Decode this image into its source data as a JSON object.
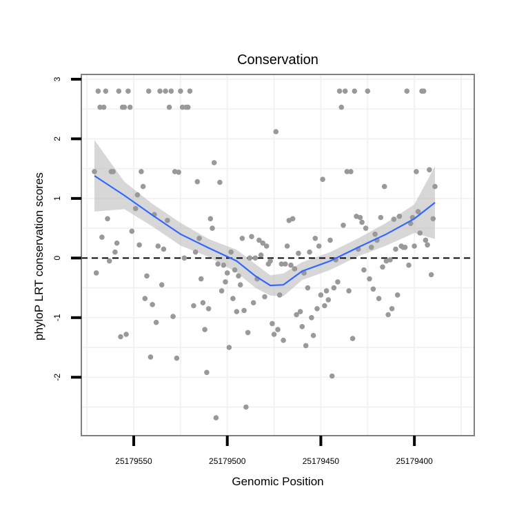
{
  "colors": {
    "background": "#ffffff",
    "panel_border": "#7f7f7f",
    "grid": "#f2f2f2",
    "points": "#999999",
    "smooth_line": "#3366ff",
    "ribbon": "#bdbdbd",
    "reference_line": "#000000"
  },
  "chart_data": {
    "type": "scatter",
    "title": "Conservation",
    "xlabel": "Genomic Position",
    "ylabel": "phyloP LRT conservation scores",
    "x_reversed": true,
    "xlim": [
      25179368,
      25179578
    ],
    "ylim": [
      -2.98,
      3.08
    ],
    "x_ticks": [
      25179550,
      25179500,
      25179450,
      25179400
    ],
    "x_tick_labels": [
      "25179550",
      "25179500",
      "25179450",
      "25179400"
    ],
    "y_ticks": [
      -2,
      -1,
      0,
      1,
      2,
      3
    ],
    "y_tick_labels": [
      "-2",
      "-1",
      "0",
      "1",
      "2",
      "3"
    ],
    "grid": true,
    "reference_line": {
      "y": 0,
      "style": "dashed"
    },
    "points": [
      [
        25179571,
        1.45
      ],
      [
        25179570,
        -0.25
      ],
      [
        25179569,
        2.8
      ],
      [
        25179568,
        2.53
      ],
      [
        25179566,
        2.53
      ],
      [
        25179567,
        0.35
      ],
      [
        25179565,
        2.8
      ],
      [
        25179564,
        0.66
      ],
      [
        25179563,
        -0.05
      ],
      [
        25179562,
        1.45
      ],
      [
        25179561,
        1.45
      ],
      [
        25179560,
        0.1
      ],
      [
        25179559,
        0.25
      ],
      [
        25179558,
        2.8
      ],
      [
        25179557,
        -1.32
      ],
      [
        25179556,
        2.53
      ],
      [
        25179555,
        2.53
      ],
      [
        25179554,
        -1.28
      ],
      [
        25179553,
        2.8
      ],
      [
        25179552,
        2.53
      ],
      [
        25179551,
        0.45
      ],
      [
        25179549,
        0.83
      ],
      [
        25179548,
        1.06
      ],
      [
        25179547,
        0.22
      ],
      [
        25179546,
        1.45
      ],
      [
        25179545,
        1.2
      ],
      [
        25179544,
        -0.68
      ],
      [
        25179543,
        -0.3
      ],
      [
        25179542,
        2.8
      ],
      [
        25179541,
        -1.66
      ],
      [
        25179540,
        -0.78
      ],
      [
        25179539,
        0.73
      ],
      [
        25179538,
        -1.08
      ],
      [
        25179537,
        0.2
      ],
      [
        25179536,
        2.8
      ],
      [
        25179535,
        -0.45
      ],
      [
        25179534,
        0.15
      ],
      [
        25179533,
        2.8
      ],
      [
        25179532,
        0.63
      ],
      [
        25179531,
        2.53
      ],
      [
        25179530,
        2.8
      ],
      [
        25179529,
        -0.98
      ],
      [
        25179528,
        1.45
      ],
      [
        25179527,
        -1.68
      ],
      [
        25179526,
        1.44
      ],
      [
        25179525,
        2.8
      ],
      [
        25179524,
        2.53
      ],
      [
        25179523,
        0.0
      ],
      [
        25179522,
        2.53
      ],
      [
        25179521,
        2.53
      ],
      [
        25179520,
        2.8
      ],
      [
        25179518,
        -0.8
      ],
      [
        25179517,
        0.1
      ],
      [
        25179516,
        1.28
      ],
      [
        25179515,
        0.33
      ],
      [
        25179514,
        -0.35
      ],
      [
        25179513,
        -0.75
      ],
      [
        25179512,
        -1.2
      ],
      [
        25179511,
        -1.92
      ],
      [
        25179510,
        -0.85
      ],
      [
        25179509,
        0.66
      ],
      [
        25179508,
        0.5
      ],
      [
        25179507,
        1.6
      ],
      [
        25179506,
        -2.68
      ],
      [
        25179505,
        -0.1
      ],
      [
        25179504,
        1.27
      ],
      [
        25179503,
        -0.55
      ],
      [
        25179502,
        -0.12
      ],
      [
        25179501,
        -0.4
      ],
      [
        25179500,
        -0.25
      ],
      [
        25179499,
        -1.5
      ],
      [
        25179498,
        0.1
      ],
      [
        25179497,
        -0.68
      ],
      [
        25179496,
        -0.2
      ],
      [
        25179495,
        -0.9
      ],
      [
        25179494,
        -0.3
      ],
      [
        25179493,
        -0.45
      ],
      [
        25179492,
        0.33
      ],
      [
        25179491,
        -0.88
      ],
      [
        25179490,
        -2.5
      ],
      [
        25179489,
        -1.25
      ],
      [
        25179488,
        0.0
      ],
      [
        25179487,
        0.36
      ],
      [
        25179486,
        -0.75
      ],
      [
        25179485,
        0.0
      ],
      [
        25179484,
        -0.35
      ],
      [
        25179483,
        0.3
      ],
      [
        25179482,
        0.05
      ],
      [
        25179481,
        0.25
      ],
      [
        25179480,
        -0.65
      ],
      [
        25179479,
        0.2
      ],
      [
        25179478,
        -0.1
      ],
      [
        25179477,
        -0.05
      ],
      [
        25179476,
        -1.1
      ],
      [
        25179475,
        -1.28
      ],
      [
        25179474,
        2.12
      ],
      [
        25179473,
        -1.2
      ],
      [
        25179472,
        -0.62
      ],
      [
        25179471,
        -0.1
      ],
      [
        25179470,
        -1.38
      ],
      [
        25179469,
        -0.1
      ],
      [
        25179468,
        0.2
      ],
      [
        25179467,
        0.63
      ],
      [
        25179466,
        -0.12
      ],
      [
        25179465,
        0.66
      ],
      [
        25179464,
        -0.18
      ],
      [
        25179463,
        -0.95
      ],
      [
        25179462,
        0.08
      ],
      [
        25179461,
        -0.9
      ],
      [
        25179460,
        -1.15
      ],
      [
        25179459,
        -0.25
      ],
      [
        25179458,
        -1.47
      ],
      [
        25179457,
        -0.5
      ],
      [
        25179456,
        0.1
      ],
      [
        25179455,
        -1.0
      ],
      [
        25179454,
        -1.3
      ],
      [
        25179453,
        0.33
      ],
      [
        25179452,
        -0.85
      ],
      [
        25179451,
        0.2
      ],
      [
        25179450,
        -0.62
      ],
      [
        25179449,
        1.32
      ],
      [
        25179448,
        -0.8
      ],
      [
        25179447,
        -0.55
      ],
      [
        25179446,
        -0.7
      ],
      [
        25179445,
        0.3
      ],
      [
        25179444,
        -1.98
      ],
      [
        25179443,
        -0.5
      ],
      [
        25179442,
        -0.03
      ],
      [
        25179441,
        -0.4
      ],
      [
        25179440,
        2.8
      ],
      [
        25179439,
        2.53
      ],
      [
        25179438,
        0.55
      ],
      [
        25179437,
        2.8
      ],
      [
        25179436,
        1.45
      ],
      [
        25179435,
        -0.55
      ],
      [
        25179434,
        1.45
      ],
      [
        25179433,
        -1.35
      ],
      [
        25179432,
        2.8
      ],
      [
        25179431,
        0.7
      ],
      [
        25179430,
        0.15
      ],
      [
        25179429,
        0.68
      ],
      [
        25179428,
        0.6
      ],
      [
        25179427,
        -0.2
      ],
      [
        25179426,
        0.5
      ],
      [
        25179425,
        2.8
      ],
      [
        25179424,
        -0.35
      ],
      [
        25179423,
        0.18
      ],
      [
        25179422,
        -0.52
      ],
      [
        25179421,
        0.4
      ],
      [
        25179420,
        0.3
      ],
      [
        25179419,
        -0.68
      ],
      [
        25179418,
        0.68
      ],
      [
        25179417,
        -0.15
      ],
      [
        25179416,
        1.2
      ],
      [
        25179415,
        -0.05
      ],
      [
        25179414,
        -0.95
      ],
      [
        25179413,
        -0.03
      ],
      [
        25179412,
        -0.85
      ],
      [
        25179411,
        0.65
      ],
      [
        25179410,
        0.15
      ],
      [
        25179409,
        -0.62
      ],
      [
        25179408,
        0.7
      ],
      [
        25179407,
        0.2
      ],
      [
        25179406,
        0.18
      ],
      [
        25179405,
        0.18
      ],
      [
        25179404,
        2.8
      ],
      [
        25179403,
        -0.12
      ],
      [
        25179402,
        0.58
      ],
      [
        25179401,
        0.68
      ],
      [
        25179400,
        0.2
      ],
      [
        25179399,
        1.45
      ],
      [
        25179398,
        0.78
      ],
      [
        25179397,
        0.42
      ],
      [
        25179396,
        2.8
      ],
      [
        25179395,
        2.8
      ],
      [
        25179394,
        0.3
      ],
      [
        25179393,
        0.22
      ],
      [
        25179392,
        1.48
      ],
      [
        25179391,
        -0.28
      ],
      [
        25179390,
        0.66
      ],
      [
        25179389,
        1.2
      ]
    ],
    "smooth": {
      "method": "loess",
      "x": [
        25179571,
        25179555,
        25179540,
        25179525,
        25179510,
        25179495,
        25179485,
        25179477,
        25179470,
        25179460,
        25179445,
        25179430,
        25179415,
        25179400,
        25179389
      ],
      "y": [
        1.38,
        1.05,
        0.72,
        0.4,
        0.17,
        -0.05,
        -0.3,
        -0.46,
        -0.45,
        -0.22,
        -0.05,
        0.18,
        0.4,
        0.66,
        0.93
      ],
      "lower": [
        0.78,
        0.82,
        0.53,
        0.21,
        0.02,
        -0.24,
        -0.5,
        -0.63,
        -0.64,
        -0.37,
        -0.2,
        0.03,
        0.21,
        0.42,
        0.32
      ],
      "upper": [
        1.98,
        1.28,
        0.91,
        0.59,
        0.32,
        0.14,
        -0.1,
        -0.29,
        -0.26,
        -0.07,
        0.1,
        0.33,
        0.59,
        0.9,
        1.54
      ]
    }
  }
}
